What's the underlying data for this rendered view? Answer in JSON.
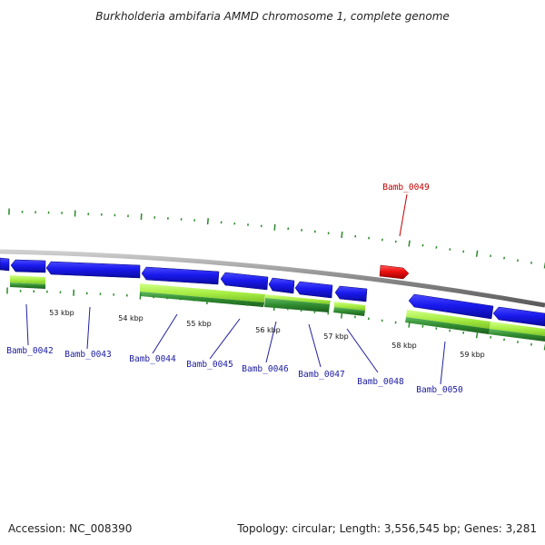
{
  "title": "Burkholderia ambifaria AMMD chromosome 1, complete genome",
  "footer": {
    "accession": "Accession: NC_008390",
    "summary": "Topology: circular; Length: 3,556,545 bp; Genes: 3,281"
  },
  "colors": {
    "backbone": "#8a8a8a",
    "tick": "#2a8a2a",
    "cds_strand": "#1a1aee",
    "highlight": "#ee1111",
    "gene_light": "#a8ee44",
    "gene_dark": "#2f8a2f",
    "label": "#1a1aa0",
    "label_highlight": "#c00000"
  },
  "scale": {
    "kbp_labels": [
      "53 kbp",
      "54 kbp",
      "55 kbp",
      "56 kbp",
      "57 kbp",
      "58 kbp",
      "59 kbp"
    ]
  },
  "genes": [
    {
      "name": "Bamb_0042",
      "highlighted": false
    },
    {
      "name": "Bamb_0043",
      "highlighted": false
    },
    {
      "name": "Bamb_0044",
      "highlighted": false
    },
    {
      "name": "Bamb_0045",
      "highlighted": false
    },
    {
      "name": "Bamb_0046",
      "highlighted": false
    },
    {
      "name": "Bamb_0047",
      "highlighted": false
    },
    {
      "name": "Bamb_0048",
      "highlighted": false
    },
    {
      "name": "Bamb_0049",
      "highlighted": true
    },
    {
      "name": "Bamb_0050",
      "highlighted": false
    }
  ]
}
